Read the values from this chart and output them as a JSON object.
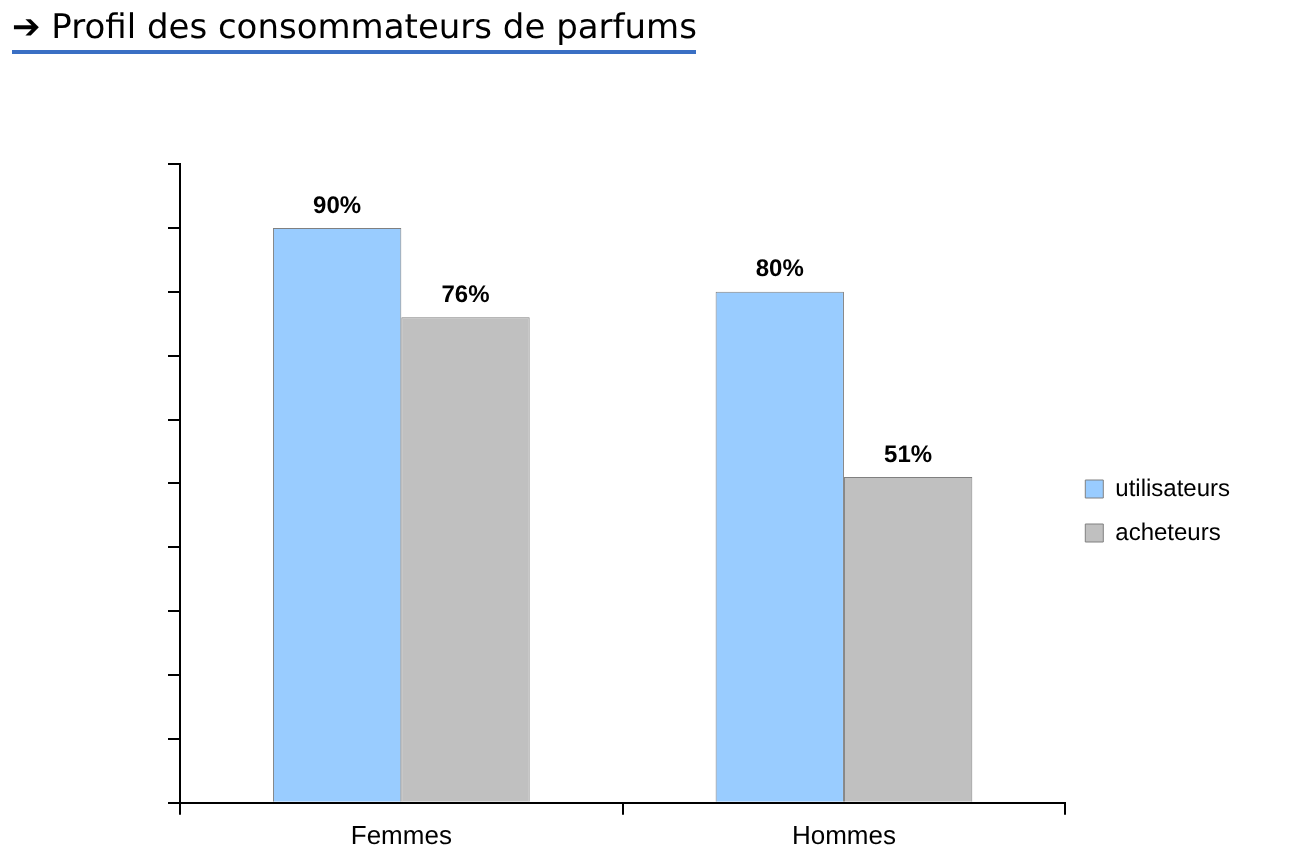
{
  "chart_data": {
    "type": "bar",
    "title": "➔ Profil des consommateurs de parfums",
    "categories": [
      "Femmes",
      "Hommes"
    ],
    "series": [
      {
        "name": "utilisateurs",
        "color": "#99ccff",
        "values": [
          90,
          80
        ],
        "value_labels": [
          "90%",
          "80%"
        ]
      },
      {
        "name": "acheteurs",
        "color": "#c0c0c0",
        "values": [
          76,
          51
        ],
        "value_labels": [
          "76%",
          "51%"
        ]
      }
    ],
    "ylim": [
      0,
      100
    ],
    "yticks": [
      {
        "value": 0,
        "label": null
      },
      {
        "value": 10,
        "label": null
      },
      {
        "value": 20,
        "label": null
      },
      {
        "value": 30,
        "label": null
      },
      {
        "value": 40,
        "label": null
      },
      {
        "value": 50,
        "label": null
      },
      {
        "value": 60,
        "label": null
      },
      {
        "value": 70,
        "label": null
      },
      {
        "value": 80,
        "label": null
      },
      {
        "value": 90,
        "label": null
      },
      {
        "value": 100,
        "label": null
      }
    ],
    "tick_labels": "x",
    "grid": false,
    "legend": "right"
  }
}
